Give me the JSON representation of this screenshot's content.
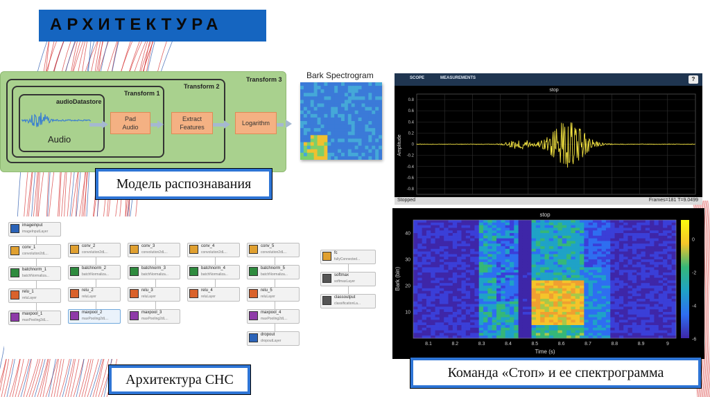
{
  "slide": {
    "title": "АРХИТЕКТУРА",
    "caption_model": "Модель распознавания",
    "caption_cnn": "Архитектура СНС",
    "caption_command": "Команда «Стоп» и ее спектрограмма"
  },
  "pipeline": {
    "transform3": "Transform 3",
    "transform2": "Transform 2",
    "transform1": "Transform 1",
    "datastore": "audioDatastore",
    "audio_label": "Audio",
    "blocks": [
      "Pad\nAudio",
      "Extract\nFeatures",
      "Logarithm"
    ],
    "bark_title": "Bark Spectrogram"
  },
  "scope": {
    "tabs": [
      "SCOPE",
      "MEASUREMENTS"
    ],
    "help": "?",
    "title": "stop",
    "ylabel": "Amplitude",
    "yticks": [
      "0.8",
      "0.6",
      "0.4",
      "0.2",
      "0",
      "-0.2",
      "-0.4",
      "-0.6",
      "-0.8"
    ],
    "status": "Stopped",
    "frames": "Frames=181  T=9.0499"
  },
  "spectrogram": {
    "title": "stop",
    "ylabel": "Bark (bin)",
    "xlabel": "Time (s)",
    "yticks": [
      "40",
      "30",
      "20",
      "10"
    ],
    "xticks": [
      "8.1",
      "8.2",
      "8.3",
      "8.4",
      "8.5",
      "8.6",
      "8.7",
      "8.8",
      "8.9",
      "9"
    ],
    "cbar_ticks": [
      "0",
      "-2",
      "-4",
      "-6"
    ]
  },
  "cnn": {
    "columns": [
      [
        {
          "name": "imageinput",
          "type": "imageInputLayer",
          "icon": "image-input-icon",
          "color": "#2b63b8"
        },
        {
          "name": "conv_1",
          "type": "convolution2dL...",
          "icon": "convolution-icon",
          "color": "#e0a030"
        },
        {
          "name": "batchnorm_1",
          "type": "batchNormaliza...",
          "icon": "batchnorm-icon",
          "color": "#2e8b3e"
        },
        {
          "name": "relu_1",
          "type": "reluLayer",
          "icon": "relu-icon",
          "color": "#d9622b"
        },
        {
          "name": "maxpool_1",
          "type": "maxPooling2dL...",
          "icon": "maxpool-icon",
          "color": "#8e3aa8"
        }
      ],
      [
        {
          "name": "conv_2",
          "type": "convolution2dL...",
          "icon": "convolution-icon",
          "color": "#e0a030"
        },
        {
          "name": "batchnorm_2",
          "type": "batchNormaliza...",
          "icon": "batchnorm-icon",
          "color": "#2e8b3e"
        },
        {
          "name": "relu_2",
          "type": "reluLayer",
          "icon": "relu-icon",
          "color": "#d9622b"
        },
        {
          "name": "maxpool_2",
          "type": "maxPooling2dL...",
          "icon": "maxpool-icon",
          "color": "#8e3aa8"
        }
      ],
      [
        {
          "name": "conv_3",
          "type": "convolution2dL...",
          "icon": "convolution-icon",
          "color": "#e0a030"
        },
        {
          "name": "batchnorm_3",
          "type": "batchNormaliza...",
          "icon": "batchnorm-icon",
          "color": "#2e8b3e"
        },
        {
          "name": "relu_3",
          "type": "reluLayer",
          "icon": "relu-icon",
          "color": "#d9622b"
        },
        {
          "name": "maxpool_3",
          "type": "maxPooling2dL...",
          "icon": "maxpool-icon",
          "color": "#8e3aa8"
        }
      ],
      [
        {
          "name": "conv_4",
          "type": "convolution2dL...",
          "icon": "convolution-icon",
          "color": "#e0a030"
        },
        {
          "name": "batchnorm_4",
          "type": "batchNormaliza...",
          "icon": "batchnorm-icon",
          "color": "#2e8b3e"
        },
        {
          "name": "relu_4",
          "type": "reluLayer",
          "icon": "relu-icon",
          "color": "#d9622b"
        }
      ],
      [
        {
          "name": "conv_5",
          "type": "convolution2dL...",
          "icon": "convolution-icon",
          "color": "#e0a030"
        },
        {
          "name": "batchnorm_5",
          "type": "batchNormaliza...",
          "icon": "batchnorm-icon",
          "color": "#2e8b3e"
        },
        {
          "name": "relu_5",
          "type": "reluLayer",
          "icon": "relu-icon",
          "color": "#d9622b"
        },
        {
          "name": "maxpool_4",
          "type": "maxPooling2dL...",
          "icon": "maxpool-icon",
          "color": "#8e3aa8"
        },
        {
          "name": "dropout",
          "type": "dropoutLayer",
          "icon": "dropout-icon",
          "color": "#2b63b8"
        }
      ],
      [
        {
          "name": "fc",
          "type": "fullyConnected...",
          "icon": "fully-connected-icon",
          "color": "#e0a030"
        },
        {
          "name": "softmax",
          "type": "softmaxLayer",
          "icon": "softmax-icon",
          "color": "#555555"
        },
        {
          "name": "classoutput",
          "type": "classificationLa...",
          "icon": "classoutput-icon",
          "color": "#555555"
        }
      ]
    ],
    "selected": "maxpool_2"
  },
  "colors": {
    "title_bar": "#1565c0",
    "pipeline_bg": "#a9d18e",
    "block": "#f4b183",
    "caption_border": "#2e75d6",
    "waveform": "#f0e040"
  }
}
